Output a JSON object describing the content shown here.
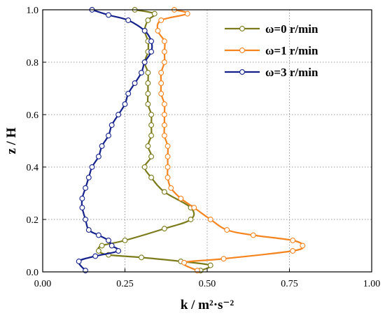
{
  "chart_data": {
    "type": "line",
    "xlabel": "k / m²·s⁻²",
    "ylabel": "z / H",
    "xlim": [
      0,
      1
    ],
    "ylim": [
      0,
      1
    ],
    "xticks": [
      "0.00",
      "0.25",
      "0.50",
      "0.75",
      "1.00"
    ],
    "yticks": [
      "0.0",
      "0.2",
      "0.4",
      "0.6",
      "0.8",
      "1.0"
    ],
    "grid": true,
    "legend_position": "top-right",
    "series": [
      {
        "name": "ω=0 r/min",
        "color": "#7b7b1b",
        "points": [
          [
            0.48,
            0.005
          ],
          [
            0.51,
            0.025
          ],
          [
            0.42,
            0.04
          ],
          [
            0.3,
            0.055
          ],
          [
            0.2,
            0.065
          ],
          [
            0.17,
            0.08
          ],
          [
            0.18,
            0.1
          ],
          [
            0.25,
            0.12
          ],
          [
            0.37,
            0.165
          ],
          [
            0.45,
            0.2
          ],
          [
            0.45,
            0.245
          ],
          [
            0.37,
            0.305
          ],
          [
            0.33,
            0.36
          ],
          [
            0.31,
            0.4
          ],
          [
            0.33,
            0.44
          ],
          [
            0.32,
            0.48
          ],
          [
            0.33,
            0.52
          ],
          [
            0.33,
            0.56
          ],
          [
            0.33,
            0.6
          ],
          [
            0.32,
            0.64
          ],
          [
            0.32,
            0.68
          ],
          [
            0.32,
            0.72
          ],
          [
            0.32,
            0.76
          ],
          [
            0.31,
            0.8
          ],
          [
            0.32,
            0.84
          ],
          [
            0.32,
            0.88
          ],
          [
            0.31,
            0.92
          ],
          [
            0.32,
            0.96
          ],
          [
            0.34,
            0.985
          ],
          [
            0.28,
            1.0
          ]
        ]
      },
      {
        "name": "ω=1 r/min",
        "color": "#f5841f",
        "points": [
          [
            0.47,
            0.005
          ],
          [
            0.43,
            0.035
          ],
          [
            0.55,
            0.05
          ],
          [
            0.76,
            0.08
          ],
          [
            0.79,
            0.1
          ],
          [
            0.76,
            0.12
          ],
          [
            0.64,
            0.14
          ],
          [
            0.56,
            0.16
          ],
          [
            0.51,
            0.2
          ],
          [
            0.46,
            0.245
          ],
          [
            0.42,
            0.28
          ],
          [
            0.39,
            0.32
          ],
          [
            0.38,
            0.36
          ],
          [
            0.38,
            0.4
          ],
          [
            0.38,
            0.44
          ],
          [
            0.38,
            0.48
          ],
          [
            0.37,
            0.52
          ],
          [
            0.37,
            0.56
          ],
          [
            0.37,
            0.6
          ],
          [
            0.37,
            0.64
          ],
          [
            0.36,
            0.68
          ],
          [
            0.36,
            0.72
          ],
          [
            0.36,
            0.76
          ],
          [
            0.37,
            0.8
          ],
          [
            0.37,
            0.84
          ],
          [
            0.37,
            0.88
          ],
          [
            0.35,
            0.92
          ],
          [
            0.36,
            0.96
          ],
          [
            0.44,
            0.985
          ],
          [
            0.4,
            1.0
          ]
        ]
      },
      {
        "name": "ω=3 r/min",
        "color": "#14218c",
        "points": [
          [
            0.13,
            0.005
          ],
          [
            0.11,
            0.04
          ],
          [
            0.16,
            0.06
          ],
          [
            0.23,
            0.08
          ],
          [
            0.21,
            0.1
          ],
          [
            0.2,
            0.12
          ],
          [
            0.17,
            0.14
          ],
          [
            0.14,
            0.16
          ],
          [
            0.13,
            0.2
          ],
          [
            0.12,
            0.245
          ],
          [
            0.12,
            0.28
          ],
          [
            0.13,
            0.32
          ],
          [
            0.14,
            0.36
          ],
          [
            0.15,
            0.4
          ],
          [
            0.17,
            0.44
          ],
          [
            0.18,
            0.48
          ],
          [
            0.2,
            0.52
          ],
          [
            0.21,
            0.56
          ],
          [
            0.23,
            0.6
          ],
          [
            0.25,
            0.64
          ],
          [
            0.26,
            0.68
          ],
          [
            0.28,
            0.72
          ],
          [
            0.3,
            0.76
          ],
          [
            0.31,
            0.8
          ],
          [
            0.33,
            0.84
          ],
          [
            0.33,
            0.88
          ],
          [
            0.31,
            0.92
          ],
          [
            0.26,
            0.96
          ],
          [
            0.2,
            0.98
          ],
          [
            0.15,
            1.0
          ]
        ]
      }
    ]
  }
}
